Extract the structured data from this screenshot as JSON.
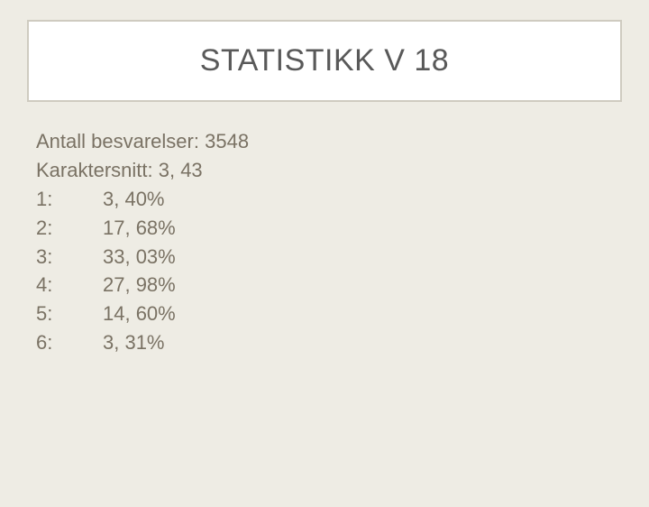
{
  "slide": {
    "title": "STATISTIKK V 18",
    "background_color": "#eeece4",
    "title_box": {
      "background_color": "#ffffff",
      "border_color": "#cfcbc0"
    },
    "text_color": "#7a7264",
    "title_color": "#595959",
    "title_fontsize": 34,
    "body_fontsize": 22
  },
  "stats": {
    "responses_label": "Antall besvarelser:",
    "responses_value": "3548",
    "average_label": "Karaktersnitt:",
    "average_value": "3, 43",
    "distribution": [
      {
        "grade": "1:",
        "pct": "3, 40%"
      },
      {
        "grade": "2:",
        "pct": "17, 68%"
      },
      {
        "grade": "3:",
        "pct": "33, 03%"
      },
      {
        "grade": "4:",
        "pct": "27, 98%"
      },
      {
        "grade": "5:",
        "pct": "14, 60%"
      },
      {
        "grade": "6:",
        "pct": "3, 31%"
      }
    ]
  }
}
